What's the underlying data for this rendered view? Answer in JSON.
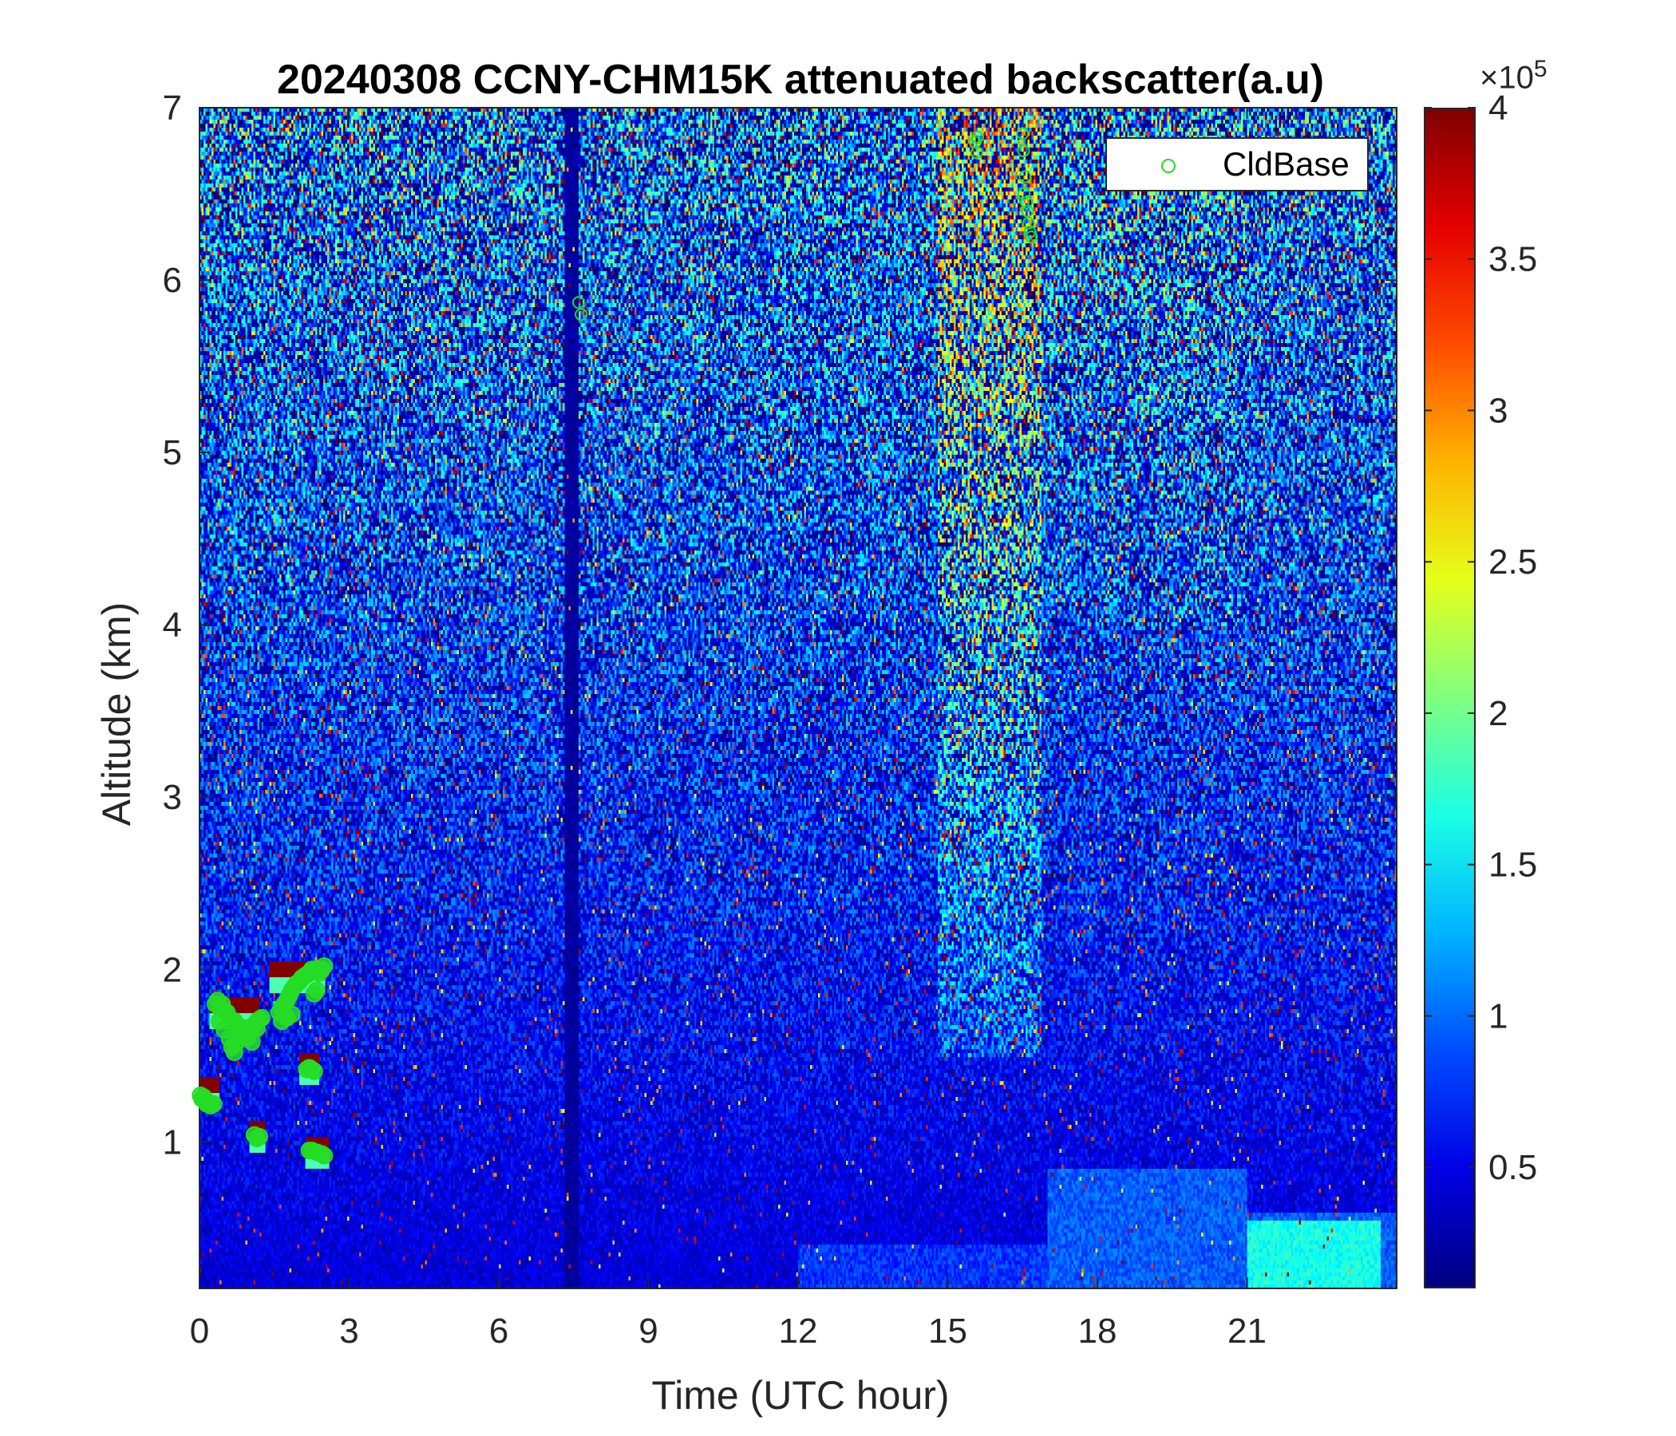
{
  "figure": {
    "title": "20240308 CCNY-CHM15K attenuated backscatter(a.u)"
  },
  "chart_data": {
    "type": "heatmap",
    "title": "20240308 CCNY-CHM15K attenuated backscatter(a.u)",
    "xlabel": "Time (UTC hour)",
    "ylabel": "Altitude (km)",
    "xlim": [
      0,
      24
    ],
    "ylim": [
      0.15,
      7
    ],
    "xticks": [
      0,
      3,
      6,
      9,
      12,
      15,
      18,
      21
    ],
    "yticks": [
      1,
      2,
      3,
      4,
      5,
      6,
      7
    ],
    "colormap": "jet",
    "clim": [
      10000,
      400000
    ],
    "colorbar": {
      "ticks": [
        0.5,
        1,
        1.5,
        2,
        2.5,
        3,
        3.5,
        4
      ],
      "tick_labels": [
        "0.5",
        "1",
        "1.5",
        "2",
        "2.5",
        "3",
        "3.5",
        "4"
      ],
      "multiplier_base": "×10",
      "multiplier_exponent": "5"
    },
    "legend": {
      "entries": [
        "CldBase"
      ],
      "placement": "top-right",
      "marker_color": "#22dd22"
    },
    "features": {
      "low_clouds": [
        {
          "x_start": 0.0,
          "x_end": 0.3,
          "y": 1.28
        },
        {
          "x_start": 0.3,
          "x_end": 1.1,
          "y": 1.75
        },
        {
          "x_start": 1.5,
          "x_end": 2.4,
          "y": 1.95
        },
        {
          "x_start": 2.1,
          "x_end": 2.3,
          "y": 1.42
        },
        {
          "x_start": 1.1,
          "x_end": 1.2,
          "y": 1.03
        },
        {
          "x_start": 2.2,
          "x_end": 2.5,
          "y": 0.94
        }
      ],
      "high_signal_column": {
        "x_start": 14.8,
        "x_end": 16.9,
        "y_bottom": 1.5,
        "y_top": 7.0
      },
      "data_gap_column": {
        "x": 7.45
      },
      "boundary_layer": [
        {
          "x_start": 17.0,
          "x_end": 21.0,
          "height": 0.85
        },
        {
          "x_start": 21.0,
          "x_end": 24.0,
          "height": 0.6
        }
      ]
    },
    "series": [
      {
        "name": "CldBase",
        "type": "scatter",
        "x": [
          0.02,
          0.05,
          0.08,
          0.12,
          0.15,
          0.18,
          0.22,
          0.28,
          0.32,
          0.36,
          0.4,
          0.45,
          0.5,
          0.55,
          0.6,
          0.65,
          0.7,
          0.75,
          0.8,
          0.85,
          0.9,
          0.95,
          1.0,
          1.05,
          1.1,
          1.15,
          1.2,
          1.25,
          0.4,
          0.5,
          0.6,
          0.65,
          0.7,
          0.75,
          0.85,
          0.95,
          1.05,
          1.15,
          1.1,
          1.15,
          1.2,
          1.6,
          1.65,
          1.7,
          1.75,
          1.8,
          1.85,
          1.9,
          1.95,
          2.0,
          2.05,
          2.1,
          2.15,
          2.2,
          2.25,
          2.3,
          2.35,
          2.4,
          2.45,
          2.5,
          1.65,
          1.75,
          1.85,
          2.3,
          2.35,
          2.15,
          2.2,
          2.25,
          2.3,
          2.2,
          2.25,
          2.35,
          2.45,
          2.5,
          7.6,
          7.65,
          15.55,
          15.6,
          15.58,
          16.5,
          16.52,
          16.55,
          16.53,
          16.58,
          16.6,
          16.62,
          16.65,
          16.68
        ],
        "y": [
          1.27,
          1.25,
          1.26,
          1.24,
          1.22,
          1.23,
          1.21,
          1.22,
          1.8,
          1.82,
          1.78,
          1.8,
          1.76,
          1.75,
          1.72,
          1.7,
          1.7,
          1.68,
          1.66,
          1.65,
          1.64,
          1.66,
          1.65,
          1.66,
          1.68,
          1.7,
          1.71,
          1.72,
          1.7,
          1.65,
          1.6,
          1.55,
          1.52,
          1.58,
          1.62,
          1.6,
          1.58,
          1.66,
          1.04,
          1.02,
          1.03,
          1.75,
          1.78,
          1.8,
          1.82,
          1.85,
          1.88,
          1.9,
          1.92,
          1.93,
          1.95,
          1.96,
          1.97,
          1.98,
          2.0,
          1.99,
          2.0,
          1.98,
          2.0,
          2.02,
          1.7,
          1.72,
          1.74,
          1.86,
          1.88,
          1.42,
          1.43,
          1.42,
          1.41,
          0.95,
          0.95,
          0.94,
          0.93,
          0.92,
          5.87,
          5.8,
          6.8,
          6.83,
          6.74,
          6.85,
          6.75,
          6.6,
          6.5,
          6.45,
          6.4,
          6.33,
          6.28,
          6.25
        ]
      }
    ]
  }
}
